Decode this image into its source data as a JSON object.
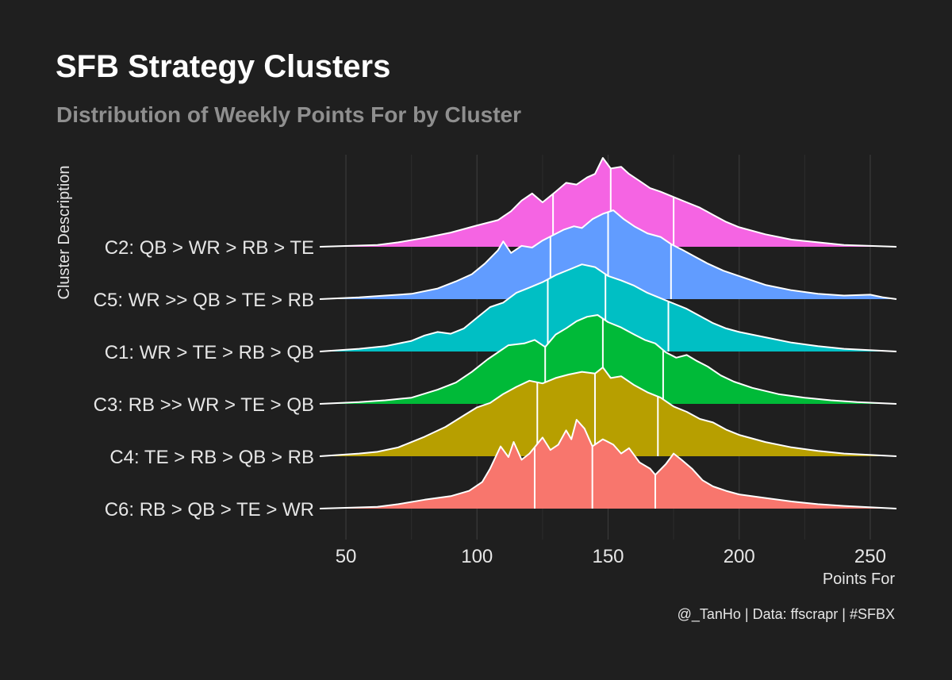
{
  "header": {
    "title": "SFB Strategy Clusters",
    "subtitle": "Distribution of Weekly Points For by Cluster"
  },
  "caption": "@_TanHo | Data: ffscrapr | #SFBX",
  "chart_data": {
    "type": "ridgeline",
    "xlabel": "Points For",
    "ylabel": "Cluster Description",
    "xlim": [
      40,
      260
    ],
    "xticks": [
      50,
      100,
      150,
      200,
      250
    ],
    "grid": true,
    "legend": "none",
    "series": [
      {
        "name": "C6: RB > QB > TE > WR",
        "color": "#F8766D",
        "quartiles": [
          122,
          144,
          168
        ],
        "density": [
          [
            40,
            0
          ],
          [
            62,
            0.02
          ],
          [
            70,
            0.05
          ],
          [
            80,
            0.1
          ],
          [
            90,
            0.14
          ],
          [
            97,
            0.2
          ],
          [
            102,
            0.3
          ],
          [
            105,
            0.45
          ],
          [
            109,
            0.7
          ],
          [
            112,
            0.58
          ],
          [
            114,
            0.75
          ],
          [
            117,
            0.55
          ],
          [
            120,
            0.62
          ],
          [
            125,
            0.8
          ],
          [
            128,
            0.66
          ],
          [
            131,
            0.72
          ],
          [
            134,
            0.88
          ],
          [
            136,
            0.78
          ],
          [
            138,
            1.0
          ],
          [
            141,
            0.9
          ],
          [
            144,
            0.7
          ],
          [
            148,
            0.78
          ],
          [
            152,
            0.72
          ],
          [
            155,
            0.62
          ],
          [
            158,
            0.68
          ],
          [
            162,
            0.52
          ],
          [
            166,
            0.45
          ],
          [
            168,
            0.38
          ],
          [
            172,
            0.5
          ],
          [
            175,
            0.62
          ],
          [
            178,
            0.55
          ],
          [
            182,
            0.45
          ],
          [
            186,
            0.32
          ],
          [
            190,
            0.25
          ],
          [
            195,
            0.2
          ],
          [
            200,
            0.16
          ],
          [
            210,
            0.12
          ],
          [
            220,
            0.08
          ],
          [
            230,
            0.05
          ],
          [
            240,
            0.03
          ],
          [
            260,
            0
          ]
        ]
      },
      {
        "name": "C4: TE > RB > QB > RB",
        "color": "#B79F00",
        "quartiles": [
          123,
          145,
          169
        ],
        "density": [
          [
            40,
            0
          ],
          [
            55,
            0.03
          ],
          [
            62,
            0.05
          ],
          [
            70,
            0.1
          ],
          [
            80,
            0.22
          ],
          [
            88,
            0.33
          ],
          [
            95,
            0.46
          ],
          [
            100,
            0.55
          ],
          [
            105,
            0.6
          ],
          [
            110,
            0.7
          ],
          [
            115,
            0.78
          ],
          [
            120,
            0.85
          ],
          [
            125,
            0.82
          ],
          [
            130,
            0.88
          ],
          [
            135,
            0.92
          ],
          [
            140,
            0.95
          ],
          [
            145,
            0.93
          ],
          [
            148,
            1.0
          ],
          [
            151,
            0.88
          ],
          [
            155,
            0.9
          ],
          [
            160,
            0.8
          ],
          [
            165,
            0.72
          ],
          [
            170,
            0.66
          ],
          [
            175,
            0.56
          ],
          [
            180,
            0.5
          ],
          [
            185,
            0.42
          ],
          [
            190,
            0.38
          ],
          [
            195,
            0.3
          ],
          [
            200,
            0.24
          ],
          [
            210,
            0.16
          ],
          [
            220,
            0.1
          ],
          [
            230,
            0.06
          ],
          [
            240,
            0.03
          ],
          [
            260,
            0
          ]
        ]
      },
      {
        "name": "C3: RB >> WR > TE > QB",
        "color": "#00BA38",
        "quartiles": [
          126,
          148,
          171
        ],
        "density": [
          [
            40,
            0
          ],
          [
            55,
            0.02
          ],
          [
            65,
            0.04
          ],
          [
            75,
            0.07
          ],
          [
            85,
            0.16
          ],
          [
            92,
            0.24
          ],
          [
            98,
            0.36
          ],
          [
            104,
            0.5
          ],
          [
            108,
            0.58
          ],
          [
            112,
            0.66
          ],
          [
            118,
            0.68
          ],
          [
            122,
            0.72
          ],
          [
            126,
            0.64
          ],
          [
            130,
            0.78
          ],
          [
            134,
            0.85
          ],
          [
            138,
            0.93
          ],
          [
            142,
            0.98
          ],
          [
            146,
            1.0
          ],
          [
            150,
            0.92
          ],
          [
            155,
            0.86
          ],
          [
            160,
            0.78
          ],
          [
            164,
            0.72
          ],
          [
            168,
            0.68
          ],
          [
            172,
            0.58
          ],
          [
            176,
            0.52
          ],
          [
            180,
            0.55
          ],
          [
            184,
            0.48
          ],
          [
            188,
            0.42
          ],
          [
            193,
            0.32
          ],
          [
            198,
            0.25
          ],
          [
            205,
            0.18
          ],
          [
            215,
            0.11
          ],
          [
            225,
            0.07
          ],
          [
            235,
            0.04
          ],
          [
            245,
            0.02
          ],
          [
            260,
            0
          ]
        ]
      },
      {
        "name": "C1: WR > TE > RB > QB",
        "color": "#00BFC4",
        "quartiles": [
          127,
          149,
          173
        ],
        "density": [
          [
            40,
            0
          ],
          [
            55,
            0.03
          ],
          [
            65,
            0.06
          ],
          [
            75,
            0.12
          ],
          [
            80,
            0.18
          ],
          [
            85,
            0.22
          ],
          [
            90,
            0.2
          ],
          [
            95,
            0.26
          ],
          [
            100,
            0.38
          ],
          [
            105,
            0.5
          ],
          [
            110,
            0.55
          ],
          [
            115,
            0.66
          ],
          [
            120,
            0.72
          ],
          [
            125,
            0.78
          ],
          [
            130,
            0.86
          ],
          [
            135,
            0.92
          ],
          [
            140,
            0.98
          ],
          [
            145,
            0.95
          ],
          [
            150,
            0.85
          ],
          [
            155,
            0.8
          ],
          [
            160,
            0.74
          ],
          [
            165,
            0.66
          ],
          [
            170,
            0.6
          ],
          [
            175,
            0.54
          ],
          [
            180,
            0.48
          ],
          [
            185,
            0.4
          ],
          [
            190,
            0.32
          ],
          [
            195,
            0.26
          ],
          [
            200,
            0.22
          ],
          [
            210,
            0.16
          ],
          [
            220,
            0.1
          ],
          [
            230,
            0.06
          ],
          [
            240,
            0.03
          ],
          [
            260,
            0
          ]
        ]
      },
      {
        "name": "C5: WR >> QB > TE > RB",
        "color": "#619CFF",
        "quartiles": [
          128,
          150,
          174
        ],
        "density": [
          [
            40,
            0
          ],
          [
            55,
            0.02
          ],
          [
            65,
            0.04
          ],
          [
            75,
            0.06
          ],
          [
            85,
            0.12
          ],
          [
            92,
            0.2
          ],
          [
            98,
            0.28
          ],
          [
            103,
            0.4
          ],
          [
            108,
            0.55
          ],
          [
            110,
            0.65
          ],
          [
            113,
            0.52
          ],
          [
            117,
            0.6
          ],
          [
            121,
            0.58
          ],
          [
            125,
            0.66
          ],
          [
            129,
            0.72
          ],
          [
            133,
            0.78
          ],
          [
            137,
            0.82
          ],
          [
            140,
            0.8
          ],
          [
            144,
            0.9
          ],
          [
            148,
            0.96
          ],
          [
            152,
            1.0
          ],
          [
            156,
            0.9
          ],
          [
            160,
            0.82
          ],
          [
            165,
            0.74
          ],
          [
            170,
            0.7
          ],
          [
            174,
            0.62
          ],
          [
            178,
            0.56
          ],
          [
            183,
            0.48
          ],
          [
            188,
            0.4
          ],
          [
            194,
            0.32
          ],
          [
            200,
            0.26
          ],
          [
            210,
            0.16
          ],
          [
            220,
            0.1
          ],
          [
            230,
            0.06
          ],
          [
            240,
            0.04
          ],
          [
            250,
            0.05
          ],
          [
            255,
            0.02
          ],
          [
            260,
            0
          ]
        ]
      },
      {
        "name": "C2: QB > WR > RB > TE",
        "color": "#F564E3",
        "quartiles": [
          129,
          151,
          175
        ],
        "density": [
          [
            40,
            0
          ],
          [
            62,
            0.02
          ],
          [
            70,
            0.05
          ],
          [
            80,
            0.1
          ],
          [
            90,
            0.16
          ],
          [
            100,
            0.24
          ],
          [
            108,
            0.3
          ],
          [
            113,
            0.4
          ],
          [
            117,
            0.52
          ],
          [
            121,
            0.6
          ],
          [
            125,
            0.5
          ],
          [
            130,
            0.62
          ],
          [
            134,
            0.72
          ],
          [
            138,
            0.7
          ],
          [
            142,
            0.78
          ],
          [
            145,
            0.82
          ],
          [
            148,
            1.0
          ],
          [
            151,
            0.88
          ],
          [
            155,
            0.9
          ],
          [
            158,
            0.82
          ],
          [
            162,
            0.74
          ],
          [
            166,
            0.66
          ],
          [
            170,
            0.62
          ],
          [
            175,
            0.56
          ],
          [
            180,
            0.5
          ],
          [
            185,
            0.44
          ],
          [
            190,
            0.36
          ],
          [
            195,
            0.28
          ],
          [
            200,
            0.22
          ],
          [
            210,
            0.14
          ],
          [
            220,
            0.08
          ],
          [
            230,
            0.05
          ],
          [
            240,
            0.02
          ],
          [
            260,
            0
          ]
        ]
      }
    ]
  }
}
